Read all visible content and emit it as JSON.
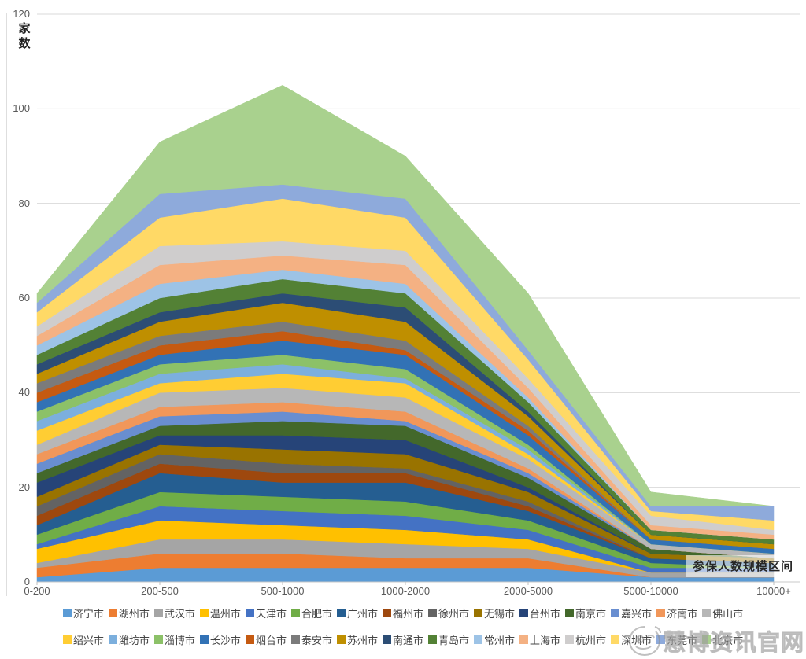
{
  "chart_data": {
    "type": "area",
    "stacked": true,
    "title": "",
    "ylabel": "家数",
    "xlabel": "参保人数规模区间",
    "categories": [
      "0-200",
      "200-500",
      "500-1000",
      "1000-2000",
      "2000-5000",
      "5000-10000",
      "10000+"
    ],
    "yticks": [
      0,
      20,
      40,
      60,
      80,
      100,
      120
    ],
    "ylim": [
      0,
      120
    ],
    "grid": true,
    "legend_position": "bottom",
    "totals_estimated": [
      60,
      93,
      104,
      90,
      61,
      19,
      17
    ],
    "series": [
      {
        "name": "济宁市",
        "color": "#5B9BD5",
        "values": [
          1,
          3,
          3,
          3,
          3,
          1,
          1
        ]
      },
      {
        "name": "湖州市",
        "color": "#ED7D31",
        "values": [
          2,
          3,
          3,
          2,
          2,
          0,
          0
        ]
      },
      {
        "name": "武汉市",
        "color": "#A5A5A5",
        "values": [
          1,
          3,
          3,
          3,
          2,
          1,
          1
        ]
      },
      {
        "name": "温州市",
        "color": "#FFC000",
        "values": [
          3,
          4,
          3,
          3,
          2,
          0,
          0
        ]
      },
      {
        "name": "天津市",
        "color": "#4472C4",
        "values": [
          1,
          3,
          3,
          3,
          2,
          1,
          1
        ]
      },
      {
        "name": "合肥市",
        "color": "#70AD47",
        "values": [
          2,
          3,
          3,
          3,
          2,
          1,
          0
        ]
      },
      {
        "name": "广州市",
        "color": "#255E91",
        "values": [
          2,
          4,
          3,
          4,
          2,
          1,
          1
        ]
      },
      {
        "name": "福州市",
        "color": "#9E480E",
        "values": [
          2,
          2,
          2,
          2,
          1,
          0,
          0
        ]
      },
      {
        "name": "徐州市",
        "color": "#636363",
        "values": [
          2,
          2,
          2,
          1,
          1,
          0,
          0
        ]
      },
      {
        "name": "无锡市",
        "color": "#997300",
        "values": [
          2,
          2,
          3,
          3,
          2,
          1,
          1
        ]
      },
      {
        "name": "台州市",
        "color": "#264478",
        "values": [
          3,
          2,
          3,
          3,
          1,
          0,
          0
        ]
      },
      {
        "name": "南京市",
        "color": "#43682B",
        "values": [
          2,
          2,
          3,
          3,
          2,
          1,
          0
        ]
      },
      {
        "name": "嘉兴市",
        "color": "#698ED0",
        "values": [
          2,
          2,
          2,
          1,
          1,
          0,
          0
        ]
      },
      {
        "name": "济南市",
        "color": "#F1975A",
        "values": [
          2,
          2,
          2,
          2,
          1,
          0,
          0
        ]
      },
      {
        "name": "佛山市",
        "color": "#B7B7B7",
        "values": [
          2,
          3,
          3,
          3,
          2,
          1,
          1
        ]
      },
      {
        "name": "绍兴市",
        "color": "#FFCD33",
        "values": [
          3,
          2,
          3,
          3,
          1,
          0,
          0
        ]
      },
      {
        "name": "潍坊市",
        "color": "#7CAFDD",
        "values": [
          2,
          2,
          2,
          1,
          1,
          0,
          0
        ]
      },
      {
        "name": "淄博市",
        "color": "#8CC168",
        "values": [
          2,
          2,
          2,
          2,
          1,
          0,
          0
        ]
      },
      {
        "name": "长沙市",
        "color": "#3272B5",
        "values": [
          2,
          2,
          3,
          3,
          2,
          1,
          1
        ]
      },
      {
        "name": "烟台市",
        "color": "#C55A11",
        "values": [
          2,
          2,
          2,
          1,
          1,
          0,
          0
        ]
      },
      {
        "name": "泰安市",
        "color": "#7B7B7B",
        "values": [
          2,
          2,
          2,
          2,
          1,
          0,
          0
        ]
      },
      {
        "name": "苏州市",
        "color": "#BF8F00",
        "values": [
          2,
          3,
          4,
          4,
          2,
          1,
          1
        ]
      },
      {
        "name": "南通市",
        "color": "#2C4D75",
        "values": [
          2,
          2,
          2,
          3,
          1,
          0,
          0
        ]
      },
      {
        "name": "青岛市",
        "color": "#538135",
        "values": [
          2,
          3,
          3,
          3,
          2,
          1,
          1
        ]
      },
      {
        "name": "常州市",
        "color": "#9DC3E6",
        "values": [
          2,
          3,
          2,
          2,
          1,
          0,
          0
        ]
      },
      {
        "name": "上海市",
        "color": "#F4B183",
        "values": [
          2,
          4,
          3,
          4,
          2,
          1,
          1
        ]
      },
      {
        "name": "杭州市",
        "color": "#CFCDCD",
        "values": [
          2,
          4,
          3,
          3,
          2,
          2,
          1
        ]
      },
      {
        "name": "深圳市",
        "color": "#FFD966",
        "values": [
          3,
          6,
          9,
          7,
          4,
          1,
          2
        ]
      },
      {
        "name": "东莞市",
        "color": "#8EAADB",
        "values": [
          2,
          5,
          3,
          4,
          2,
          1,
          3
        ]
      },
      {
        "name": "北京市",
        "color": "#A9D18E",
        "values": [
          2,
          11,
          21,
          9,
          12,
          3,
          0
        ]
      }
    ],
    "legend_rows": [
      15,
      15
    ],
    "legend_entries_hidden_by_watermark": [
      "深圳市",
      "东莞市",
      "北京市"
    ]
  },
  "watermark": {
    "text": "慧博资讯官网"
  }
}
